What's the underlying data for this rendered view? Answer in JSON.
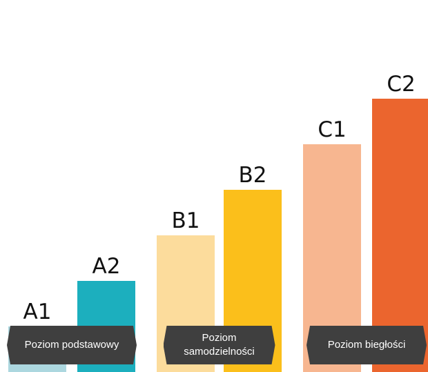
{
  "chart_data": {
    "type": "bar",
    "title": "",
    "xlabel": "",
    "ylabel": "",
    "ylim": [
      0,
      6
    ],
    "categories": [
      "A1",
      "A2",
      "B1",
      "B2",
      "C1",
      "C2"
    ],
    "values": [
      1,
      2,
      3,
      4,
      5,
      6
    ],
    "colors": [
      "#acd7df",
      "#1cafbe",
      "#fcdc9c",
      "#fbbf1b",
      "#f7b690",
      "#eb652e"
    ],
    "groups": [
      {
        "label": "Poziom podstawowy",
        "categories": [
          "A1",
          "A2"
        ]
      },
      {
        "label": "Poziom samodzielności",
        "categories": [
          "B1",
          "B2"
        ]
      },
      {
        "label": "Poziom biegłości",
        "categories": [
          "C1",
          "C2"
        ]
      }
    ],
    "grid": false,
    "legend": "none"
  }
}
